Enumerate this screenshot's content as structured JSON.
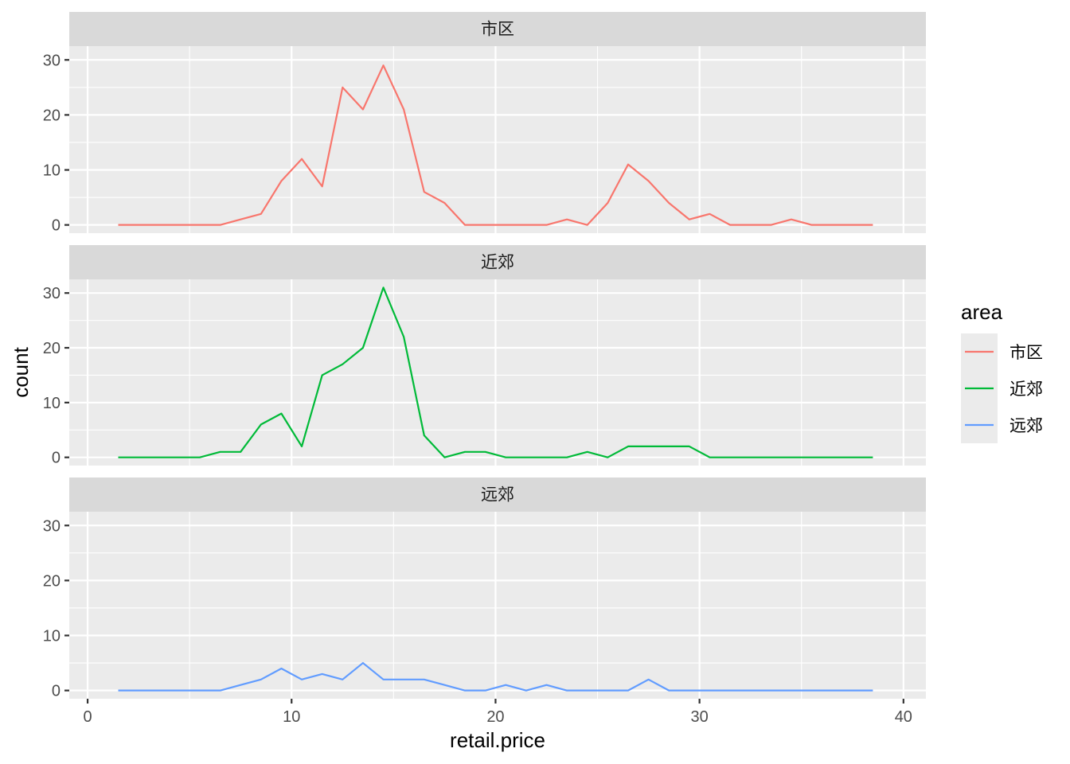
{
  "chart_data": {
    "type": "line",
    "facet_by": "area",
    "xlabel": "retail.price",
    "ylabel": "count",
    "xlim": [
      -0.9,
      41.1
    ],
    "ylim": [
      -1.5,
      32.5
    ],
    "x_ticks": [
      0,
      10,
      20,
      30,
      40
    ],
    "x_tick_labels": [
      "0",
      "10",
      "20",
      "30",
      "40"
    ],
    "y_ticks": [
      0,
      10,
      20,
      30
    ],
    "y_tick_labels": [
      "0",
      "10",
      "20",
      "30"
    ],
    "grid": true,
    "legend": {
      "title": "area",
      "position": "right"
    },
    "x": [
      1.5,
      2.5,
      3.5,
      4.5,
      5.5,
      6.5,
      7.5,
      8.5,
      9.5,
      10.5,
      11.5,
      12.5,
      13.5,
      14.5,
      15.5,
      16.5,
      17.5,
      18.5,
      19.5,
      20.5,
      21.5,
      22.5,
      23.5,
      24.5,
      25.5,
      26.5,
      27.5,
      28.5,
      29.5,
      30.5,
      31.5,
      32.5,
      33.5,
      34.5,
      35.5,
      36.5,
      37.5,
      38.5
    ],
    "series": [
      {
        "name": "市区",
        "color": "#F8766D",
        "values": [
          0,
          0,
          0,
          0,
          0,
          0,
          1,
          2,
          8,
          12,
          7,
          25,
          21,
          29,
          21,
          6,
          4,
          0,
          0,
          0,
          0,
          0,
          1,
          0,
          4,
          11,
          8,
          4,
          1,
          2,
          0,
          0,
          0,
          1,
          0,
          0,
          0,
          0
        ]
      },
      {
        "name": "近郊",
        "color": "#00BA38",
        "values": [
          0,
          0,
          0,
          0,
          0,
          1,
          1,
          6,
          8,
          2,
          15,
          17,
          20,
          31,
          22,
          4,
          0,
          1,
          1,
          0,
          0,
          0,
          0,
          1,
          0,
          2,
          2,
          2,
          2,
          0,
          0,
          0,
          0,
          0,
          0,
          0,
          0,
          0
        ]
      },
      {
        "name": "远郊",
        "color": "#619CFF",
        "values": [
          0,
          0,
          0,
          0,
          0,
          0,
          1,
          2,
          4,
          2,
          3,
          2,
          5,
          2,
          2,
          2,
          1,
          0,
          0,
          1,
          0,
          1,
          0,
          0,
          0,
          0,
          2,
          0,
          0,
          0,
          0,
          0,
          0,
          0,
          0,
          0,
          0,
          0
        ]
      }
    ]
  }
}
